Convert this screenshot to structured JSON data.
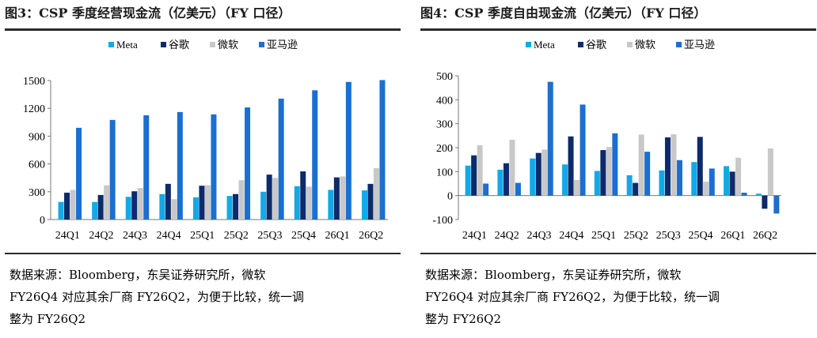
{
  "charts": [
    {
      "title": "图3：CSP 季度经营现金流（亿美元）（FY 口径）",
      "source": [
        "数据来源：Bloomberg，东吴证券研究所，微软",
        "FY26Q4 对应其余厂商 FY26Q2，为便于比较，统一调",
        "整为 FY26Q2"
      ]
    },
    {
      "title": "图4：CSP 季度自由现金流（亿美元）（FY 口径）",
      "source": [
        "数据来源：Bloomberg，东吴证券研究所，微软",
        "FY26Q4 对应其余厂商 FY26Q2，为便于比较，统一调",
        "整为 FY26Q2"
      ]
    }
  ],
  "chart_data": [
    {
      "type": "bar",
      "title": "图3：CSP 季度经营现金流（亿美元）（FY 口径）",
      "categories": [
        "24Q1",
        "24Q2",
        "24Q3",
        "24Q4",
        "25Q1",
        "25Q2",
        "25Q3",
        "25Q4",
        "26Q1",
        "26Q2"
      ],
      "series": [
        {
          "name": "Meta",
          "color": "#12a9e6",
          "values": [
            190,
            190,
            245,
            275,
            240,
            255,
            300,
            360,
            320,
            315
          ]
        },
        {
          "name": "谷歌",
          "color": "#0d2a6b",
          "values": [
            290,
            265,
            305,
            385,
            365,
            275,
            485,
            520,
            455,
            385
          ]
        },
        {
          "name": "微软",
          "color": "#c8c8c8",
          "values": [
            320,
            370,
            340,
            220,
            370,
            425,
            450,
            355,
            465,
            555
          ]
        },
        {
          "name": "亚马逊",
          "color": "#1a6fd1",
          "values": [
            990,
            1075,
            1125,
            1160,
            1135,
            1210,
            1305,
            1395,
            1485,
            1505
          ]
        }
      ],
      "ylim": [
        0,
        1500
      ],
      "yticks": [
        0,
        300,
        600,
        900,
        1200,
        1500
      ],
      "legend": "top"
    },
    {
      "type": "bar",
      "title": "图4：CSP 季度自由现金流（亿美元）（FY 口径）",
      "categories": [
        "24Q1",
        "24Q2",
        "24Q3",
        "24Q4",
        "25Q1",
        "25Q2",
        "25Q3",
        "25Q4",
        "26Q1",
        "26Q2"
      ],
      "series": [
        {
          "name": "Meta",
          "color": "#12a9e6",
          "values": [
            125,
            108,
            155,
            130,
            103,
            85,
            105,
            140,
            123,
            8
          ]
        },
        {
          "name": "谷歌",
          "color": "#0d2a6b",
          "values": [
            168,
            135,
            178,
            247,
            190,
            53,
            243,
            245,
            100,
            -55
          ]
        },
        {
          "name": "微软",
          "color": "#c8c8c8",
          "values": [
            210,
            233,
            192,
            65,
            203,
            255,
            256,
            58,
            158,
            197
          ]
        },
        {
          "name": "亚马逊",
          "color": "#1a6fd1",
          "values": [
            50,
            53,
            475,
            380,
            260,
            183,
            148,
            113,
            12,
            -75
          ]
        }
      ],
      "ylim": [
        -100,
        500
      ],
      "yticks": [
        -100,
        0,
        100,
        200,
        300,
        400,
        500
      ],
      "legend": "top"
    }
  ]
}
